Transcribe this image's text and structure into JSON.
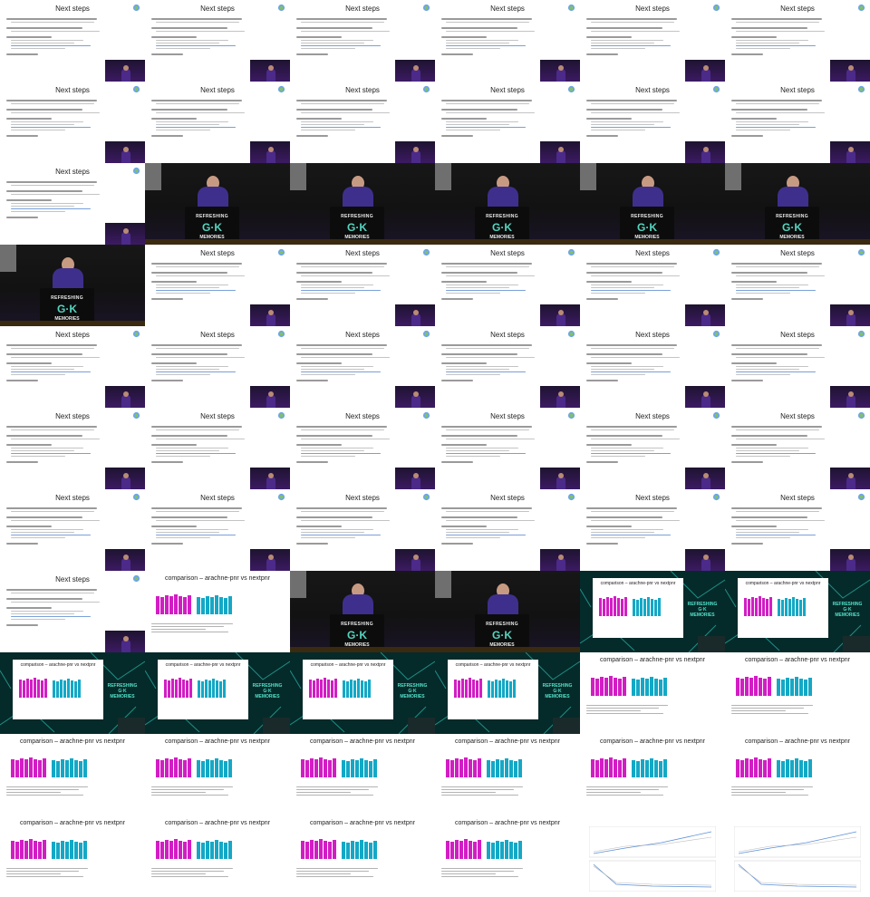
{
  "tiles": [
    "slide",
    "slide",
    "slide",
    "slide",
    "slide",
    "slide",
    "slide",
    "slide",
    "slide",
    "slide",
    "slide",
    "slide",
    "slide",
    "stage",
    "stage",
    "stage",
    "stage",
    "stage",
    "stage",
    "slide",
    "slide",
    "slide",
    "slide",
    "slide",
    "slide",
    "slide",
    "slide",
    "slide",
    "slide",
    "slide",
    "slide",
    "slide",
    "slide",
    "slide",
    "slide",
    "slide",
    "slide",
    "slide",
    "slide",
    "slide",
    "slide",
    "slide",
    "slide",
    "cmpslide",
    "stage",
    "stage",
    "cmpframe",
    "cmpframe",
    "cmpframe",
    "cmpframe",
    "cmpframe",
    "cmpframe",
    "cmpslide",
    "cmpslide",
    "cmpslide",
    "cmpslide",
    "cmpslide",
    "cmpslide",
    "cmpslide",
    "cmpslide",
    "cmpslide",
    "cmpslide",
    "cmpslide",
    "cmpslide",
    "graphslide",
    "graphslide"
  ],
  "slide_text": {
    "next_steps_title": "Next steps",
    "comparison_title": "comparison – arachne-pnr vs nextpnr"
  },
  "stage_text": {
    "line1": "REFRESHING",
    "line2": "G·K",
    "line3": "MEMORIES"
  },
  "frame_text": {
    "line1": "REFRESHING",
    "line2": "G·K",
    "line3": "MEMORIES"
  },
  "colors": {
    "magenta": "#d21dc4",
    "cyan": "#14a8c6",
    "stage_teal": "#54d6c0"
  }
}
